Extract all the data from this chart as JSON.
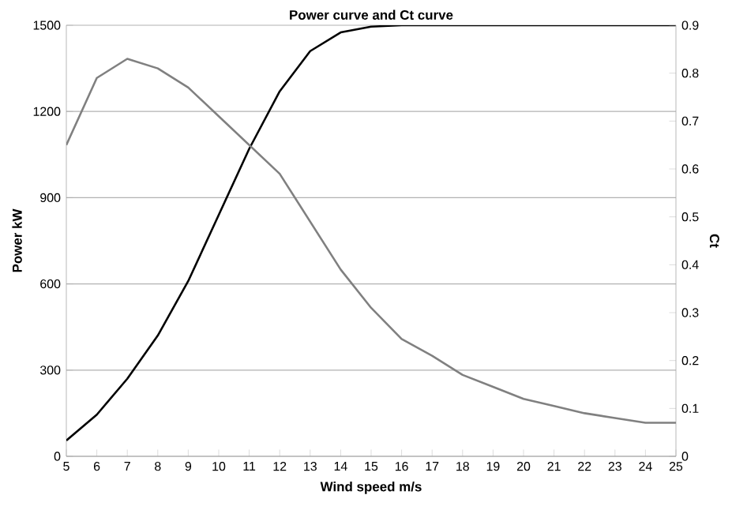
{
  "chart_data": {
    "type": "line",
    "title": "Power curve and Ct curve",
    "xlabel": "Wind speed m/s",
    "ylabel": "Power kW",
    "y2label": "Ct",
    "x": [
      5,
      6,
      7,
      8,
      9,
      10,
      11,
      12,
      13,
      14,
      15,
      16,
      17,
      18,
      19,
      20,
      21,
      22,
      23,
      24,
      25
    ],
    "series": [
      {
        "color": "#000000",
        "values": [
          55,
          145,
          270,
          420,
          610,
          840,
          1070,
          1270,
          1410,
          1475,
          1495,
          1500,
          1500,
          1500,
          1500,
          1500,
          1500,
          1500,
          1500,
          1500,
          1500
        ]
      },
      {
        "color": "#808080",
        "axis": "y2",
        "values": [
          0.65,
          0.79,
          0.83,
          0.81,
          0.77,
          0.71,
          0.65,
          0.59,
          0.49,
          0.39,
          0.31,
          0.245,
          0.21,
          0.17,
          0.145,
          0.12,
          0.105,
          0.09,
          0.08,
          0.07,
          0.07
        ]
      }
    ],
    "xlim": [
      5,
      25
    ],
    "xticks": [
      5,
      6,
      7,
      8,
      9,
      10,
      11,
      12,
      13,
      14,
      15,
      16,
      17,
      18,
      19,
      20,
      21,
      22,
      23,
      24,
      25
    ],
    "ylim": [
      0,
      1500
    ],
    "yticks": [
      0,
      300,
      600,
      900,
      1200,
      1500
    ],
    "y2lim": [
      0,
      0.9
    ],
    "y2ticks": [
      0,
      0.1,
      0.2,
      0.3,
      0.4,
      0.5,
      0.6,
      0.7,
      0.8,
      0.9
    ],
    "grid": "y",
    "marker": "none",
    "line_style": "solid"
  }
}
